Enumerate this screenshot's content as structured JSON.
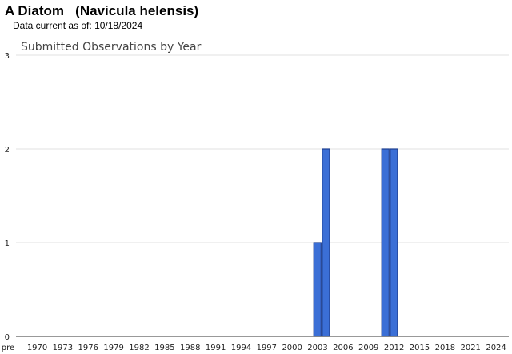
{
  "header": {
    "title": "A Diatom   (Navicula helensis)",
    "data_current_label": "Data current as of:",
    "data_current_date": "10/18/2024"
  },
  "chart_data": {
    "type": "bar",
    "title": "Submitted Observations by Year",
    "xlabel": "",
    "ylabel": "",
    "ylim": [
      0,
      3
    ],
    "yticks": [
      0,
      1,
      2,
      3
    ],
    "grid": true,
    "bar_color": "#3b6fd6",
    "bar_edge_color": "#1f3f8f",
    "x_categories": [
      "pre",
      "1970",
      "1973",
      "1976",
      "1979",
      "1982",
      "1985",
      "1988",
      "1991",
      "1994",
      "1997",
      "2000",
      "2003",
      "2006",
      "2009",
      "2012",
      "2015",
      "2018",
      "2021",
      "2024"
    ],
    "bars": [
      {
        "year": 2003,
        "value": 1
      },
      {
        "year": 2004,
        "value": 2
      },
      {
        "year": 2011,
        "value": 2
      },
      {
        "year": 2012,
        "value": 2
      }
    ]
  }
}
